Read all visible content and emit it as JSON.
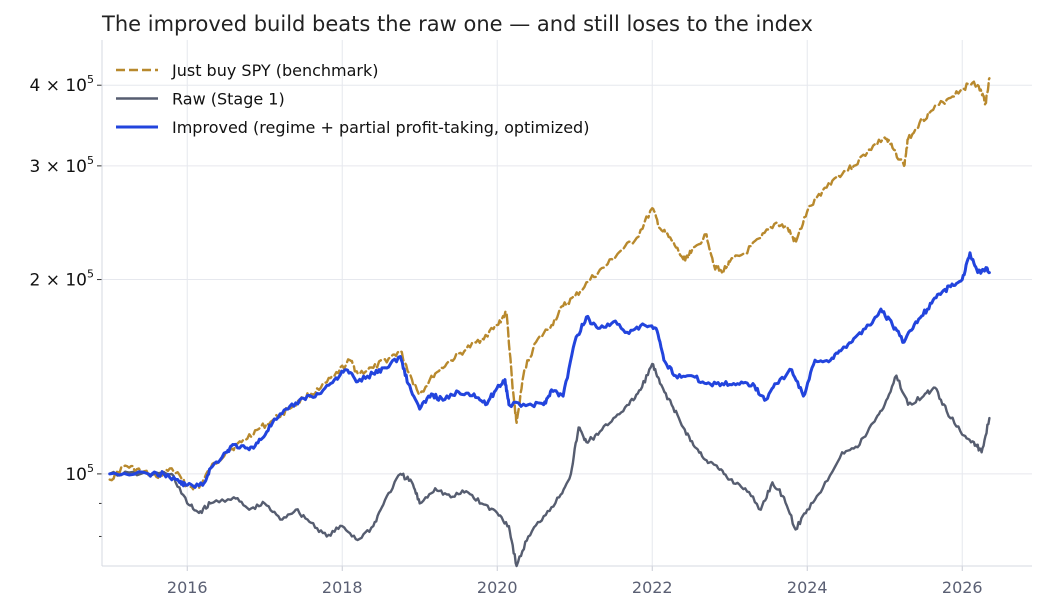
{
  "chart_data": {
    "type": "line",
    "title": "The improved build beats the raw one — and still loses to the index",
    "xlabel": "",
    "ylabel": "",
    "yscale": "log",
    "xlim": [
      2014.9,
      2026.9
    ],
    "ylim": [
      72000,
      470000
    ],
    "grid": true,
    "legend_position": "top-left",
    "x_ticks": [
      {
        "value": 2016,
        "label": "2016"
      },
      {
        "value": 2018,
        "label": "2018"
      },
      {
        "value": 2020,
        "label": "2020"
      },
      {
        "value": 2022,
        "label": "2022"
      },
      {
        "value": 2024,
        "label": "2024"
      },
      {
        "value": 2026,
        "label": "2026"
      }
    ],
    "y_ticks": [
      {
        "value": 100000,
        "mantissa": "",
        "exponent": "5",
        "muted": true
      },
      {
        "value": 200000,
        "mantissa": "2",
        "exponent": "5",
        "muted": false
      },
      {
        "value": 300000,
        "mantissa": "3",
        "exponent": "5",
        "muted": false
      },
      {
        "value": 400000,
        "mantissa": "4",
        "exponent": "5",
        "muted": false
      }
    ],
    "y_minor_ticks": [
      80000,
      90000
    ],
    "series": [
      {
        "name": "Just buy SPY (benchmark)",
        "color": "#b8892d",
        "dash": "dashed",
        "points": [
          [
            2015.0,
            98000
          ],
          [
            2015.2,
            103000
          ],
          [
            2015.4,
            101000
          ],
          [
            2015.6,
            99000
          ],
          [
            2015.8,
            102000
          ],
          [
            2016.0,
            96000
          ],
          [
            2016.15,
            95000
          ],
          [
            2016.3,
            102000
          ],
          [
            2016.5,
            108000
          ],
          [
            2016.7,
            112000
          ],
          [
            2016.9,
            117000
          ],
          [
            2017.1,
            121000
          ],
          [
            2017.3,
            126000
          ],
          [
            2017.5,
            131000
          ],
          [
            2017.7,
            135000
          ],
          [
            2017.9,
            142000
          ],
          [
            2018.1,
            150000
          ],
          [
            2018.2,
            143000
          ],
          [
            2018.4,
            146000
          ],
          [
            2018.6,
            151000
          ],
          [
            2018.75,
            155000
          ],
          [
            2018.9,
            140000
          ],
          [
            2019.0,
            133000
          ],
          [
            2019.2,
            143000
          ],
          [
            2019.4,
            150000
          ],
          [
            2019.6,
            156000
          ],
          [
            2019.8,
            162000
          ],
          [
            2020.0,
            170000
          ],
          [
            2020.12,
            178000
          ],
          [
            2020.2,
            135000
          ],
          [
            2020.25,
            120000
          ],
          [
            2020.35,
            145000
          ],
          [
            2020.5,
            160000
          ],
          [
            2020.7,
            170000
          ],
          [
            2020.85,
            182000
          ],
          [
            2021.0,
            188000
          ],
          [
            2021.2,
            200000
          ],
          [
            2021.4,
            210000
          ],
          [
            2021.6,
            222000
          ],
          [
            2021.8,
            232000
          ],
          [
            2022.0,
            258000
          ],
          [
            2022.1,
            240000
          ],
          [
            2022.25,
            230000
          ],
          [
            2022.4,
            215000
          ],
          [
            2022.5,
            220000
          ],
          [
            2022.7,
            235000
          ],
          [
            2022.8,
            210000
          ],
          [
            2022.9,
            205000
          ],
          [
            2023.0,
            213000
          ],
          [
            2023.2,
            220000
          ],
          [
            2023.4,
            232000
          ],
          [
            2023.6,
            245000
          ],
          [
            2023.75,
            240000
          ],
          [
            2023.85,
            228000
          ],
          [
            2024.0,
            255000
          ],
          [
            2024.2,
            275000
          ],
          [
            2024.4,
            290000
          ],
          [
            2024.6,
            300000
          ],
          [
            2024.8,
            318000
          ],
          [
            2025.0,
            332000
          ],
          [
            2025.1,
            320000
          ],
          [
            2025.25,
            300000
          ],
          [
            2025.3,
            330000
          ],
          [
            2025.45,
            350000
          ],
          [
            2025.6,
            365000
          ],
          [
            2025.8,
            380000
          ],
          [
            2026.0,
            395000
          ],
          [
            2026.15,
            405000
          ],
          [
            2026.25,
            390000
          ],
          [
            2026.3,
            375000
          ],
          [
            2026.35,
            410000
          ]
        ]
      },
      {
        "name": "Raw (Stage 1)",
        "color": "#565d70",
        "dash": "solid",
        "points": [
          [
            2015.0,
            100000
          ],
          [
            2015.4,
            100000
          ],
          [
            2015.8,
            100000
          ],
          [
            2016.0,
            90000
          ],
          [
            2016.15,
            87000
          ],
          [
            2016.3,
            90000
          ],
          [
            2016.6,
            92000
          ],
          [
            2016.8,
            88000
          ],
          [
            2017.0,
            90000
          ],
          [
            2017.2,
            85000
          ],
          [
            2017.4,
            88000
          ],
          [
            2017.6,
            84000
          ],
          [
            2017.8,
            80000
          ],
          [
            2018.0,
            83000
          ],
          [
            2018.2,
            79000
          ],
          [
            2018.4,
            83000
          ],
          [
            2018.55,
            91000
          ],
          [
            2018.75,
            100000
          ],
          [
            2018.9,
            97000
          ],
          [
            2019.0,
            90000
          ],
          [
            2019.2,
            95000
          ],
          [
            2019.4,
            92000
          ],
          [
            2019.6,
            94000
          ],
          [
            2019.8,
            90000
          ],
          [
            2020.0,
            87000
          ],
          [
            2020.15,
            83000
          ],
          [
            2020.25,
            72000
          ],
          [
            2020.4,
            80000
          ],
          [
            2020.6,
            86000
          ],
          [
            2020.8,
            92000
          ],
          [
            2020.95,
            100000
          ],
          [
            2021.05,
            118000
          ],
          [
            2021.15,
            112000
          ],
          [
            2021.3,
            115000
          ],
          [
            2021.5,
            122000
          ],
          [
            2021.7,
            128000
          ],
          [
            2021.85,
            135000
          ],
          [
            2022.0,
            148000
          ],
          [
            2022.1,
            138000
          ],
          [
            2022.25,
            128000
          ],
          [
            2022.4,
            118000
          ],
          [
            2022.55,
            110000
          ],
          [
            2022.7,
            105000
          ],
          [
            2022.85,
            102000
          ],
          [
            2023.0,
            98000
          ],
          [
            2023.2,
            95000
          ],
          [
            2023.4,
            88000
          ],
          [
            2023.55,
            97000
          ],
          [
            2023.7,
            92000
          ],
          [
            2023.85,
            82000
          ],
          [
            2024.0,
            88000
          ],
          [
            2024.2,
            95000
          ],
          [
            2024.45,
            108000
          ],
          [
            2024.65,
            110000
          ],
          [
            2024.85,
            120000
          ],
          [
            2025.0,
            128000
          ],
          [
            2025.15,
            142000
          ],
          [
            2025.3,
            128000
          ],
          [
            2025.5,
            132000
          ],
          [
            2025.65,
            136000
          ],
          [
            2025.8,
            125000
          ],
          [
            2026.0,
            115000
          ],
          [
            2026.15,
            112000
          ],
          [
            2026.25,
            108000
          ],
          [
            2026.35,
            122000
          ]
        ]
      },
      {
        "name": "Improved (regime + partial profit-taking, optimized)",
        "color": "#2244dd",
        "dash": "solid",
        "points": [
          [
            2015.0,
            100000
          ],
          [
            2015.5,
            100000
          ],
          [
            2015.7,
            100000
          ],
          [
            2015.9,
            97000
          ],
          [
            2016.0,
            96000
          ],
          [
            2016.2,
            96000
          ],
          [
            2016.3,
            102000
          ],
          [
            2016.5,
            108000
          ],
          [
            2016.6,
            111000
          ],
          [
            2016.8,
            109000
          ],
          [
            2016.95,
            113000
          ],
          [
            2017.1,
            120000
          ],
          [
            2017.3,
            126000
          ],
          [
            2017.5,
            131000
          ],
          [
            2017.7,
            133000
          ],
          [
            2017.9,
            140000
          ],
          [
            2018.05,
            145000
          ],
          [
            2018.2,
            139000
          ],
          [
            2018.4,
            143000
          ],
          [
            2018.55,
            146000
          ],
          [
            2018.75,
            152000
          ],
          [
            2018.85,
            138000
          ],
          [
            2019.0,
            126000
          ],
          [
            2019.15,
            133000
          ],
          [
            2019.3,
            130000
          ],
          [
            2019.5,
            134000
          ],
          [
            2019.7,
            133000
          ],
          [
            2019.85,
            128000
          ],
          [
            2020.0,
            136000
          ],
          [
            2020.1,
            140000
          ],
          [
            2020.15,
            128000
          ],
          [
            2020.4,
            128000
          ],
          [
            2020.6,
            128000
          ],
          [
            2020.7,
            135000
          ],
          [
            2020.85,
            132000
          ],
          [
            2021.0,
            160000
          ],
          [
            2021.15,
            175000
          ],
          [
            2021.3,
            168000
          ],
          [
            2021.5,
            172000
          ],
          [
            2021.7,
            165000
          ],
          [
            2021.9,
            170000
          ],
          [
            2022.05,
            168000
          ],
          [
            2022.15,
            150000
          ],
          [
            2022.3,
            142000
          ],
          [
            2022.5,
            142000
          ],
          [
            2022.7,
            138000
          ],
          [
            2022.9,
            138000
          ],
          [
            2023.1,
            138000
          ],
          [
            2023.3,
            138000
          ],
          [
            2023.45,
            130000
          ],
          [
            2023.6,
            138000
          ],
          [
            2023.8,
            145000
          ],
          [
            2023.95,
            132000
          ],
          [
            2024.1,
            150000
          ],
          [
            2024.3,
            150000
          ],
          [
            2024.45,
            156000
          ],
          [
            2024.6,
            162000
          ],
          [
            2024.8,
            170000
          ],
          [
            2024.95,
            180000
          ],
          [
            2025.1,
            170000
          ],
          [
            2025.25,
            160000
          ],
          [
            2025.4,
            172000
          ],
          [
            2025.55,
            180000
          ],
          [
            2025.7,
            190000
          ],
          [
            2025.85,
            195000
          ],
          [
            2026.0,
            200000
          ],
          [
            2026.1,
            220000
          ],
          [
            2026.2,
            205000
          ],
          [
            2026.3,
            208000
          ],
          [
            2026.35,
            205000
          ]
        ]
      }
    ]
  }
}
